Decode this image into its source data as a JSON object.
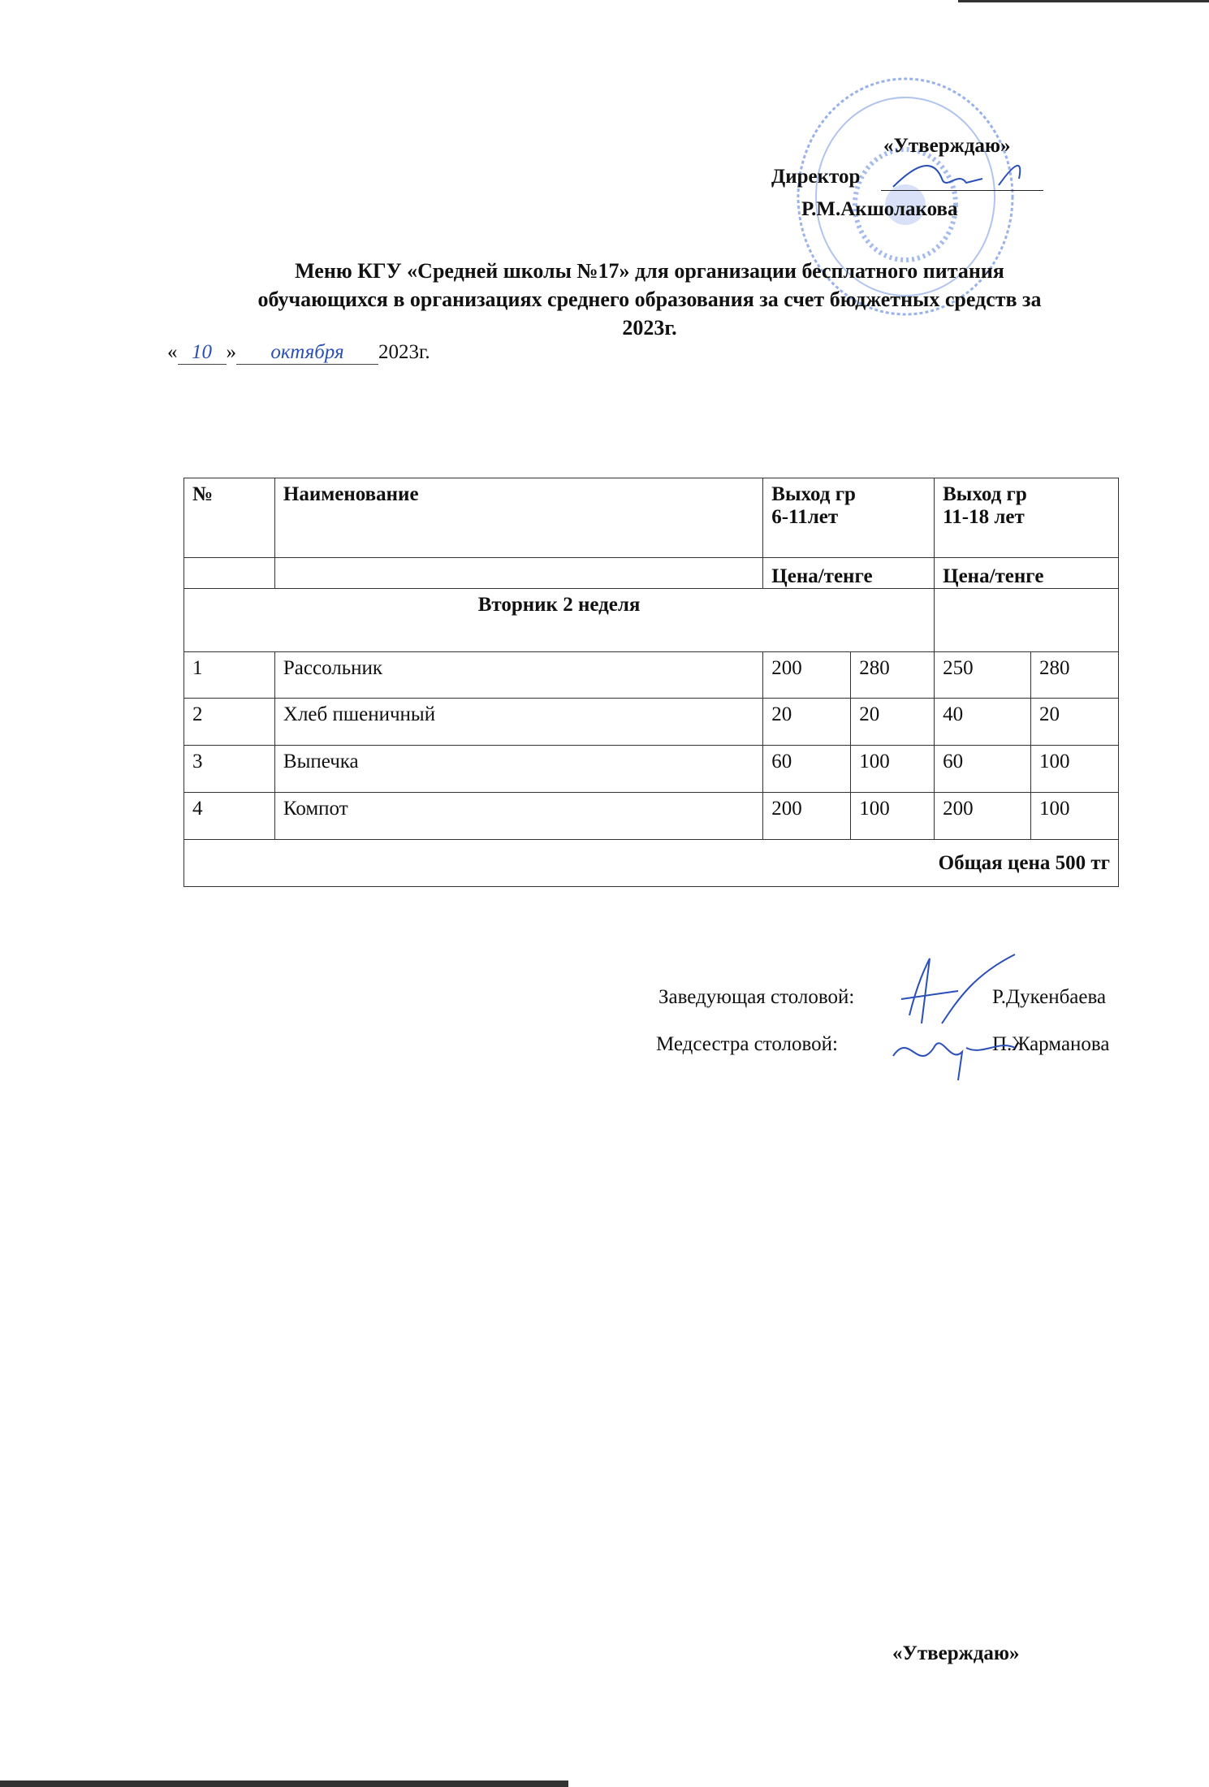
{
  "approval": {
    "label": "«Утверждаю»",
    "director_label": "Директор",
    "director_name": "Р.М.Акшолакова"
  },
  "title": {
    "line1": "Меню КГУ «Средней школы №17» для организации бесплатного питания",
    "line2": "обучающихся в организациях среднего образования за счет бюджетных средств за",
    "line3": "2023г."
  },
  "date": {
    "open_quote": "«",
    "day": "10",
    "close_quote": "»",
    "month": "октября",
    "year": "2023г."
  },
  "table": {
    "headers": {
      "num": "№",
      "name": "Наименование",
      "group1": "Выход гр",
      "group1_age": "6-11лет",
      "group2": "Выход гр",
      "group2_age": "11-18 лет",
      "price1": "Цена/тенге",
      "price2": "Цена/тенге"
    },
    "day_label": "Вторник 2 неделя",
    "rows": [
      {
        "num": "1",
        "name": "Рассольник",
        "v1": "200",
        "v2": "280",
        "v3": "250",
        "v4": "280"
      },
      {
        "num": "2",
        "name": "Хлеб пшеничный",
        "v1": "20",
        "v2": "20",
        "v3": "40",
        "v4": "20"
      },
      {
        "num": "3",
        "name": "Выпечка",
        "v1": "60",
        "v2": "100",
        "v3": "60",
        "v4": "100"
      },
      {
        "num": "4",
        "name": "Компот",
        "v1": "200",
        "v2": "100",
        "v3": "200",
        "v4": "100"
      }
    ],
    "total": "Общая цена 500 тг"
  },
  "signatures": [
    {
      "role": "Заведующая столовой:",
      "name": "Р.Дукенбаева"
    },
    {
      "role": "Медсестра столовой:",
      "name": "П.Жарманова"
    }
  ],
  "footer": {
    "approval_label": "«Утверждаю»"
  },
  "colors": {
    "ink": "#111111",
    "stamp": "#2a5fd0"
  }
}
